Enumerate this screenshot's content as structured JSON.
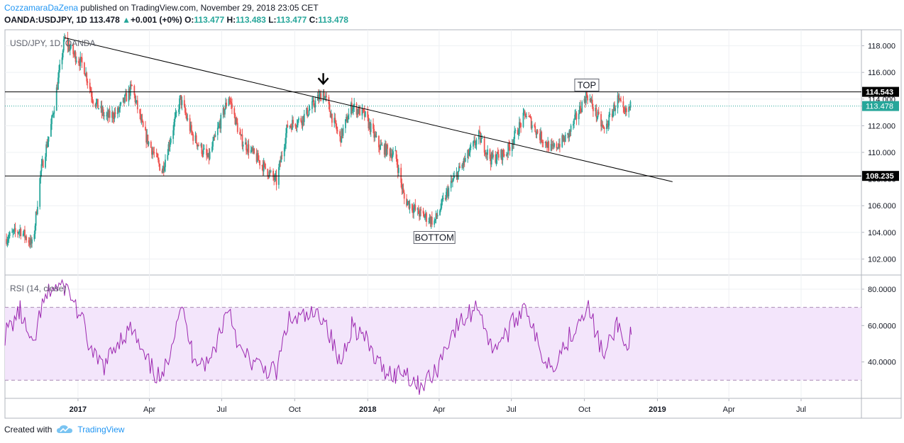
{
  "header": {
    "author": "CozzamaraDaZena",
    "published": "published on TradingView.com, November 29, 2018 23:05 CET",
    "symbol": "OANDA:USDJPY, 1D",
    "last": "113.478",
    "change": "+0.001 (+0%)",
    "o_label": "O:",
    "o_value": "113.477",
    "h_label": "H:",
    "h_value": "113.483",
    "l_label": "L:",
    "l_value": "113.477",
    "c_label": "C:",
    "c_value": "113.478"
  },
  "footer": {
    "created_with": "Created with",
    "brand": "TradingView"
  },
  "colors": {
    "up": "#26a69a",
    "down": "#ef5350",
    "rsi_line": "#9c27b0",
    "rsi_band": "#f3e5fb",
    "price_line": "#26a69a"
  },
  "chart_data": [
    {
      "type": "candlestick",
      "title": "USD/JPY, 1D, OANDA",
      "ylim": [
        100.8,
        119.2
      ],
      "y_ticks": [
        "102.000",
        "104.000",
        "106.000",
        "108.000",
        "110.000",
        "112.000",
        "114.000",
        "116.000",
        "118.000"
      ],
      "x_ticks": [
        "2017",
        "Apr",
        "Jul",
        "Oct",
        "2018",
        "Apr",
        "Jul",
        "Oct",
        "2019",
        "Apr",
        "Jul"
      ],
      "x_range": [
        "2016-10-01",
        "2019-09-15"
      ],
      "last_price": 113.478,
      "horizontal_lines": [
        {
          "value": 114.543,
          "label": "114.543"
        },
        {
          "value": 108.235,
          "label": "108.235"
        }
      ],
      "trendline": {
        "from": {
          "date": "2016-12-15",
          "price": 118.6
        },
        "to": {
          "date": "2019-01-20",
          "price": 107.8
        }
      },
      "annotations": [
        {
          "text": "TOP",
          "date": "2018-10-04",
          "price": 114.55
        },
        {
          "text": "BOTTOM",
          "date": "2018-03-26",
          "price": 104.6
        }
      ],
      "arrow": {
        "date": "2017-11-06",
        "price": 115.2
      },
      "series": [
        [
          "2016-10-01",
          103.5
        ],
        [
          "2016-10-20",
          104.2
        ],
        [
          "2016-11-05",
          103.0
        ],
        [
          "2016-11-15",
          108.5
        ],
        [
          "2016-11-28",
          112.0
        ],
        [
          "2016-12-15",
          118.5
        ],
        [
          "2016-12-25",
          117.5
        ],
        [
          "2017-01-08",
          116.5
        ],
        [
          "2017-01-20",
          114.0
        ],
        [
          "2017-02-05",
          112.6
        ],
        [
          "2017-02-20",
          113.0
        ],
        [
          "2017-03-10",
          114.9
        ],
        [
          "2017-03-25",
          111.5
        ],
        [
          "2017-04-17",
          108.6
        ],
        [
          "2017-05-10",
          114.0
        ],
        [
          "2017-05-25",
          111.3
        ],
        [
          "2017-06-14",
          109.5
        ],
        [
          "2017-07-10",
          114.2
        ],
        [
          "2017-07-25",
          111.0
        ],
        [
          "2017-08-15",
          109.5
        ],
        [
          "2017-09-08",
          107.8
        ],
        [
          "2017-09-22",
          112.0
        ],
        [
          "2017-10-10",
          112.5
        ],
        [
          "2017-11-06",
          114.5
        ],
        [
          "2017-11-27",
          111.0
        ],
        [
          "2017-12-12",
          113.5
        ],
        [
          "2017-12-28",
          112.8
        ],
        [
          "2018-01-15",
          110.5
        ],
        [
          "2018-02-05",
          109.8
        ],
        [
          "2018-02-16",
          106.5
        ],
        [
          "2018-03-05",
          105.5
        ],
        [
          "2018-03-26",
          104.8
        ],
        [
          "2018-04-15",
          107.5
        ],
        [
          "2018-05-21",
          111.2
        ],
        [
          "2018-06-05",
          109.5
        ],
        [
          "2018-06-25",
          110.0
        ],
        [
          "2018-07-19",
          112.9
        ],
        [
          "2018-08-05",
          111.3
        ],
        [
          "2018-08-21",
          110.2
        ],
        [
          "2018-09-10",
          111.2
        ],
        [
          "2018-10-04",
          114.4
        ],
        [
          "2018-10-26",
          111.6
        ],
        [
          "2018-11-12",
          114.0
        ],
        [
          "2018-11-20",
          112.8
        ],
        [
          "2018-11-29",
          113.48
        ]
      ]
    },
    {
      "type": "line",
      "title": "RSI (14, close)",
      "ylim": [
        20,
        87
      ],
      "y_ticks": [
        "40.0000",
        "60.0000",
        "80.0000"
      ],
      "bands": [
        30,
        70
      ],
      "series": [
        [
          "2016-10-01",
          55
        ],
        [
          "2016-10-20",
          68
        ],
        [
          "2016-11-05",
          46
        ],
        [
          "2016-11-15",
          68
        ],
        [
          "2016-11-28",
          80
        ],
        [
          "2016-12-15",
          82
        ],
        [
          "2016-12-25",
          75
        ],
        [
          "2017-01-08",
          60
        ],
        [
          "2017-01-20",
          42
        ],
        [
          "2017-02-05",
          38
        ],
        [
          "2017-02-20",
          52
        ],
        [
          "2017-03-10",
          58
        ],
        [
          "2017-03-25",
          42
        ],
        [
          "2017-04-17",
          29
        ],
        [
          "2017-05-10",
          72
        ],
        [
          "2017-05-25",
          45
        ],
        [
          "2017-06-14",
          38
        ],
        [
          "2017-07-10",
          71
        ],
        [
          "2017-07-25",
          45
        ],
        [
          "2017-08-15",
          38
        ],
        [
          "2017-09-08",
          34
        ],
        [
          "2017-09-22",
          62
        ],
        [
          "2017-10-10",
          64
        ],
        [
          "2017-11-06",
          66
        ],
        [
          "2017-11-27",
          38
        ],
        [
          "2017-12-12",
          61
        ],
        [
          "2017-12-28",
          53
        ],
        [
          "2018-01-15",
          38
        ],
        [
          "2018-02-05",
          33
        ],
        [
          "2018-02-16",
          36
        ],
        [
          "2018-03-05",
          27
        ],
        [
          "2018-03-26",
          33
        ],
        [
          "2018-04-15",
          55
        ],
        [
          "2018-05-21",
          72
        ],
        [
          "2018-06-05",
          48
        ],
        [
          "2018-06-25",
          55
        ],
        [
          "2018-07-19",
          73
        ],
        [
          "2018-08-05",
          46
        ],
        [
          "2018-08-21",
          38
        ],
        [
          "2018-09-10",
          52
        ],
        [
          "2018-10-04",
          72
        ],
        [
          "2018-10-26",
          42
        ],
        [
          "2018-11-12",
          62
        ],
        [
          "2018-11-20",
          48
        ],
        [
          "2018-11-29",
          55
        ]
      ]
    }
  ]
}
